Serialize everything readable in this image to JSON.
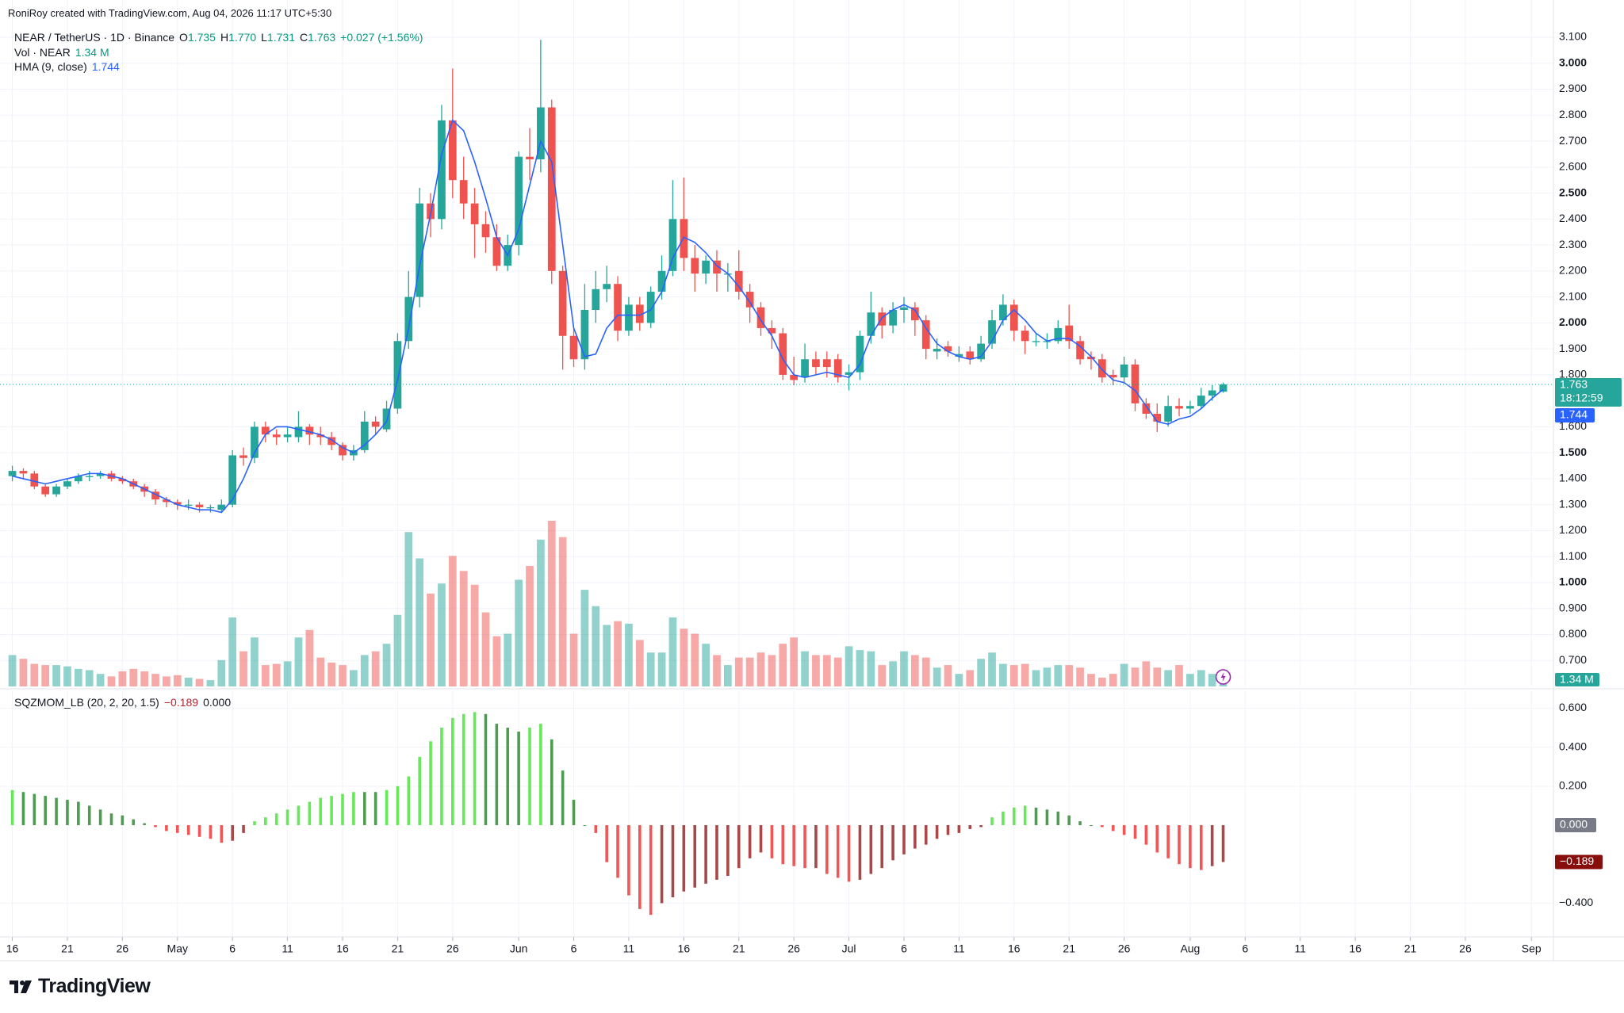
{
  "header": "RoniRoy created with TradingView.com, Aug 04, 2026 11:17 UTC+5:30",
  "brand": "TradingView",
  "chart_data": [
    {
      "type": "candlestick",
      "symbol": "NEAR / TetherUS · 1D · Binance",
      "ohlc_legend": [
        {
          "label": "O",
          "value": "1.735"
        },
        {
          "label": "H",
          "value": "1.770"
        },
        {
          "label": "L",
          "value": "1.731"
        },
        {
          "label": "C",
          "value": "1.763"
        }
      ],
      "change": "+0.027 (+1.56%)",
      "volume_legend": {
        "name": "Vol · NEAR",
        "value": "1.34 M"
      },
      "hma_legend": {
        "name": "HMA (9, close)",
        "value": "1.744"
      },
      "countdown": "18:12:59",
      "colors": {
        "up": "#26a69a",
        "down": "#ef5350",
        "hma": "#2962ff"
      },
      "open": [
        1.41,
        1.43,
        1.42,
        1.37,
        1.34,
        1.37,
        1.39,
        1.41,
        1.41,
        1.42,
        1.4,
        1.39,
        1.37,
        1.35,
        1.32,
        1.31,
        1.3,
        1.3,
        1.29,
        1.28,
        1.3,
        1.49,
        1.48,
        1.6,
        1.57,
        1.56,
        1.56,
        1.6,
        1.57,
        1.56,
        1.53,
        1.49,
        1.51,
        1.62,
        1.59,
        1.67,
        1.93,
        2.1,
        2.46,
        2.4,
        2.78,
        2.55,
        2.46,
        2.38,
        2.33,
        2.22,
        2.3,
        2.64,
        2.63,
        2.83,
        2.2,
        1.95,
        1.86,
        2.05,
        2.13,
        2.15,
        1.97,
        2.07,
        2.0,
        2.12,
        2.2,
        2.4,
        2.25,
        2.19,
        2.24,
        2.19,
        2.2,
        2.12,
        2.06,
        1.98,
        1.96,
        1.8,
        1.79,
        1.86,
        1.86,
        1.86,
        1.8,
        1.81,
        1.95,
        2.04,
        1.99,
        2.05,
        2.06,
        2.01,
        1.89,
        1.91,
        1.87,
        1.89,
        1.86,
        1.92,
        2.01,
        2.07,
        1.97,
        1.93,
        1.93,
        1.93,
        1.99,
        1.93,
        1.87,
        1.86,
        1.8,
        1.79,
        1.84,
        1.69,
        1.65,
        1.62,
        1.68,
        1.67,
        1.68,
        1.72,
        1.735
      ],
      "high": [
        1.45,
        1.44,
        1.43,
        1.38,
        1.38,
        1.4,
        1.42,
        1.43,
        1.43,
        1.43,
        1.41,
        1.4,
        1.38,
        1.36,
        1.33,
        1.32,
        1.32,
        1.31,
        1.3,
        1.32,
        1.51,
        1.52,
        1.62,
        1.62,
        1.59,
        1.6,
        1.66,
        1.61,
        1.6,
        1.58,
        1.54,
        1.53,
        1.66,
        1.64,
        1.7,
        1.96,
        2.2,
        2.52,
        2.5,
        2.84,
        2.98,
        2.64,
        2.52,
        2.43,
        2.38,
        2.34,
        2.66,
        2.75,
        3.09,
        2.86,
        2.22,
        1.98,
        2.15,
        2.2,
        2.22,
        2.18,
        2.1,
        2.1,
        2.14,
        2.26,
        2.55,
        2.56,
        2.3,
        2.26,
        2.28,
        2.23,
        2.28,
        2.15,
        2.08,
        2.01,
        1.98,
        1.87,
        1.92,
        1.89,
        1.89,
        1.88,
        1.84,
        1.97,
        2.12,
        2.06,
        2.08,
        2.1,
        2.08,
        2.03,
        1.94,
        1.93,
        1.91,
        1.91,
        1.95,
        2.05,
        2.11,
        2.09,
        1.99,
        1.96,
        1.96,
        2.01,
        2.07,
        1.95,
        1.89,
        1.88,
        1.82,
        1.87,
        1.86,
        1.71,
        1.69,
        1.72,
        1.71,
        1.7,
        1.75,
        1.76,
        1.77
      ],
      "low": [
        1.39,
        1.4,
        1.36,
        1.33,
        1.33,
        1.36,
        1.38,
        1.39,
        1.4,
        1.39,
        1.38,
        1.36,
        1.33,
        1.3,
        1.29,
        1.28,
        1.28,
        1.27,
        1.27,
        1.27,
        1.29,
        1.45,
        1.46,
        1.54,
        1.53,
        1.54,
        1.54,
        1.53,
        1.53,
        1.51,
        1.47,
        1.47,
        1.5,
        1.57,
        1.58,
        1.65,
        1.9,
        2.06,
        2.33,
        2.36,
        2.48,
        2.4,
        2.25,
        2.27,
        2.2,
        2.2,
        2.26,
        2.55,
        2.58,
        2.15,
        1.82,
        1.83,
        1.82,
        2.0,
        2.08,
        1.93,
        1.95,
        1.97,
        1.98,
        2.09,
        2.18,
        2.2,
        2.12,
        2.15,
        2.12,
        2.12,
        2.09,
        2.0,
        1.95,
        1.9,
        1.78,
        1.76,
        1.77,
        1.8,
        1.79,
        1.77,
        1.74,
        1.78,
        1.92,
        1.94,
        1.96,
        2.0,
        1.95,
        1.86,
        1.86,
        1.87,
        1.85,
        1.84,
        1.85,
        1.9,
        1.99,
        1.93,
        1.88,
        1.91,
        1.9,
        1.92,
        1.9,
        1.84,
        1.82,
        1.77,
        1.76,
        1.77,
        1.66,
        1.63,
        1.58,
        1.6,
        1.64,
        1.65,
        1.67,
        1.7,
        1.731
      ],
      "close": [
        1.43,
        1.42,
        1.37,
        1.34,
        1.37,
        1.39,
        1.41,
        1.41,
        1.42,
        1.4,
        1.39,
        1.37,
        1.35,
        1.32,
        1.31,
        1.3,
        1.3,
        1.29,
        1.29,
        1.3,
        1.49,
        1.48,
        1.6,
        1.57,
        1.56,
        1.57,
        1.6,
        1.57,
        1.56,
        1.53,
        1.49,
        1.51,
        1.62,
        1.6,
        1.67,
        1.93,
        2.1,
        2.46,
        2.4,
        2.78,
        2.55,
        2.46,
        2.38,
        2.33,
        2.22,
        2.3,
        2.64,
        2.63,
        2.83,
        2.2,
        1.95,
        1.86,
        2.05,
        2.13,
        2.15,
        1.97,
        2.07,
        2.0,
        2.12,
        2.2,
        2.4,
        2.25,
        2.19,
        2.24,
        2.19,
        2.19,
        2.12,
        2.06,
        1.98,
        1.96,
        1.8,
        1.78,
        1.86,
        1.83,
        1.83,
        1.79,
        1.81,
        1.95,
        2.04,
        1.99,
        2.05,
        2.06,
        2.01,
        1.9,
        1.9,
        1.89,
        1.88,
        1.86,
        1.92,
        2.01,
        2.07,
        1.97,
        1.93,
        1.93,
        1.93,
        1.98,
        1.93,
        1.86,
        1.86,
        1.79,
        1.79,
        1.84,
        1.69,
        1.65,
        1.62,
        1.68,
        1.67,
        1.68,
        1.72,
        1.74,
        1.763
      ],
      "volume": [
        2.5,
        2.2,
        1.8,
        1.7,
        1.7,
        1.6,
        1.4,
        1.3,
        1.0,
        0.8,
        1.2,
        1.4,
        1.2,
        1.0,
        0.8,
        0.9,
        0.7,
        0.6,
        0.5,
        2.1,
        5.5,
        2.8,
        3.9,
        1.7,
        1.8,
        2.0,
        3.9,
        4.5,
        2.3,
        1.9,
        1.7,
        1.3,
        2.5,
        2.8,
        3.4,
        5.7,
        12.3,
        10.2,
        7.4,
        8.2,
        10.4,
        9.2,
        8.1,
        5.9,
        4.0,
        4.2,
        8.5,
        9.6,
        11.7,
        13.2,
        11.9,
        4.2,
        7.7,
        6.4,
        4.9,
        5.2,
        5.0,
        3.7,
        2.7,
        2.7,
        5.5,
        4.6,
        4.2,
        3.4,
        2.5,
        1.7,
        2.3,
        2.3,
        2.7,
        2.5,
        3.4,
        3.9,
        2.8,
        2.5,
        2.5,
        2.3,
        3.2,
        2.9,
        2.8,
        1.7,
        2.0,
        2.8,
        2.5,
        2.3,
        1.5,
        1.7,
        1.0,
        1.3,
        2.2,
        2.7,
        1.8,
        1.7,
        1.8,
        1.3,
        1.5,
        1.7,
        1.7,
        1.5,
        1.0,
        0.7,
        1.0,
        1.8,
        1.5,
        2.0,
        1.5,
        1.3,
        1.7,
        1.0,
        1.3,
        1.0,
        1.34
      ],
      "hma": [
        1.41,
        1.4,
        1.39,
        1.38,
        1.39,
        1.4,
        1.41,
        1.42,
        1.42,
        1.41,
        1.4,
        1.38,
        1.36,
        1.34,
        1.32,
        1.3,
        1.29,
        1.28,
        1.28,
        1.27,
        1.32,
        1.4,
        1.5,
        1.57,
        1.6,
        1.6,
        1.59,
        1.58,
        1.57,
        1.55,
        1.52,
        1.5,
        1.53,
        1.57,
        1.62,
        1.78,
        1.98,
        2.22,
        2.42,
        2.65,
        2.78,
        2.74,
        2.62,
        2.48,
        2.33,
        2.26,
        2.36,
        2.53,
        2.7,
        2.62,
        2.3,
        1.98,
        1.87,
        1.88,
        1.98,
        2.03,
        2.03,
        2.03,
        2.05,
        2.12,
        2.25,
        2.33,
        2.31,
        2.27,
        2.22,
        2.19,
        2.14,
        2.08,
        2.01,
        1.95,
        1.86,
        1.8,
        1.79,
        1.8,
        1.81,
        1.8,
        1.79,
        1.84,
        1.95,
        2.02,
        2.05,
        2.07,
        2.05,
        1.98,
        1.92,
        1.89,
        1.87,
        1.86,
        1.87,
        1.93,
        2.01,
        2.05,
        2.01,
        1.96,
        1.93,
        1.94,
        1.94,
        1.91,
        1.87,
        1.82,
        1.78,
        1.77,
        1.74,
        1.68,
        1.62,
        1.61,
        1.63,
        1.64,
        1.67,
        1.71,
        1.744
      ],
      "xlim": [
        -0.4,
        140
      ],
      "ylim": [
        0.6,
        3.155
      ],
      "yticks": [
        {
          "value": 3.1,
          "label": "3.100"
        },
        {
          "value": 3.0,
          "label": "3.000"
        },
        {
          "value": 2.9,
          "label": "2.900"
        },
        {
          "value": 2.8,
          "label": "2.800"
        },
        {
          "value": 2.7,
          "label": "2.700"
        },
        {
          "value": 2.6,
          "label": "2.600"
        },
        {
          "value": 2.5,
          "label": "2.500"
        },
        {
          "value": 2.4,
          "label": "2.400"
        },
        {
          "value": 2.3,
          "label": "2.300"
        },
        {
          "value": 2.2,
          "label": "2.200"
        },
        {
          "value": 2.1,
          "label": "2.100"
        },
        {
          "value": 2.0,
          "label": "2.000"
        },
        {
          "value": 1.9,
          "label": "1.900"
        },
        {
          "value": 1.8,
          "label": "1.800"
        },
        {
          "value": 1.6,
          "label": "1.600"
        },
        {
          "value": 1.5,
          "label": "1.500"
        },
        {
          "value": 1.4,
          "label": "1.400"
        },
        {
          "value": 1.3,
          "label": "1.300"
        },
        {
          "value": 1.2,
          "label": "1.200"
        },
        {
          "value": 1.1,
          "label": "1.100"
        },
        {
          "value": 1.0,
          "label": "1.000"
        },
        {
          "value": 0.9,
          "label": "0.900"
        },
        {
          "value": 0.8,
          "label": "0.800"
        },
        {
          "value": 0.7,
          "label": "0.700"
        }
      ],
      "grid": true
    },
    {
      "type": "bar",
      "title": "SQZMOM_LB (20, 2, 20, 1.5)",
      "legend_values": [
        "−0.189",
        "0.000"
      ],
      "colors": {
        "rising_up": "#66e85a",
        "falling_up": "#4e9c52",
        "falling_down": "#f25555",
        "rising_down": "#a84848",
        "zero_box": "#787b86",
        "value_box": "#880e0e"
      },
      "values": [
        0.18,
        0.17,
        0.16,
        0.15,
        0.14,
        0.13,
        0.12,
        0.1,
        0.08,
        0.06,
        0.05,
        0.03,
        0.01,
        -0.01,
        -0.03,
        -0.04,
        -0.05,
        -0.06,
        -0.07,
        -0.09,
        -0.08,
        -0.04,
        0.02,
        0.04,
        0.06,
        0.08,
        0.1,
        0.12,
        0.14,
        0.15,
        0.16,
        0.17,
        0.17,
        0.17,
        0.18,
        0.2,
        0.25,
        0.35,
        0.43,
        0.5,
        0.55,
        0.57,
        0.58,
        0.57,
        0.52,
        0.5,
        0.48,
        0.5,
        0.52,
        0.44,
        0.28,
        0.13,
        0.0,
        -0.04,
        -0.19,
        -0.27,
        -0.36,
        -0.43,
        -0.46,
        -0.4,
        -0.37,
        -0.34,
        -0.32,
        -0.3,
        -0.28,
        -0.26,
        -0.22,
        -0.17,
        -0.14,
        -0.17,
        -0.2,
        -0.21,
        -0.22,
        -0.22,
        -0.25,
        -0.27,
        -0.29,
        -0.28,
        -0.25,
        -0.22,
        -0.18,
        -0.15,
        -0.12,
        -0.1,
        -0.07,
        -0.05,
        -0.04,
        -0.02,
        -0.01,
        0.04,
        0.07,
        0.09,
        0.1,
        0.09,
        0.08,
        0.07,
        0.05,
        0.02,
        0.0,
        -0.01,
        -0.03,
        -0.05,
        -0.07,
        -0.1,
        -0.14,
        -0.17,
        -0.2,
        -0.22,
        -0.23,
        -0.21,
        -0.189
      ],
      "xlim": [
        -0.4,
        140
      ],
      "ylim": [
        -0.573,
        0.687
      ],
      "yticks": [
        {
          "value": 0.6,
          "label": "0.600"
        },
        {
          "value": 0.4,
          "label": "0.400"
        },
        {
          "value": 0.2,
          "label": "0.200"
        },
        {
          "value": -0.4,
          "label": "−0.400"
        }
      ],
      "xticks": [
        {
          "value": 0,
          "label": "16"
        },
        {
          "value": 5,
          "label": "21"
        },
        {
          "value": 10,
          "label": "26"
        },
        {
          "value": 15,
          "label": "May"
        },
        {
          "value": 20,
          "label": "6"
        },
        {
          "value": 25,
          "label": "11"
        },
        {
          "value": 30,
          "label": "16"
        },
        {
          "value": 35,
          "label": "21"
        },
        {
          "value": 40,
          "label": "26"
        },
        {
          "value": 46,
          "label": "Jun"
        },
        {
          "value": 51,
          "label": "6"
        },
        {
          "value": 56,
          "label": "11"
        },
        {
          "value": 61,
          "label": "16"
        },
        {
          "value": 66,
          "label": "21"
        },
        {
          "value": 71,
          "label": "26"
        },
        {
          "value": 76,
          "label": "Jul"
        },
        {
          "value": 81,
          "label": "6"
        },
        {
          "value": 86,
          "label": "11"
        },
        {
          "value": 91,
          "label": "16"
        },
        {
          "value": 96,
          "label": "21"
        },
        {
          "value": 101,
          "label": "26"
        },
        {
          "value": 107,
          "label": "Aug"
        },
        {
          "value": 112,
          "label": "6"
        },
        {
          "value": 117,
          "label": "11"
        },
        {
          "value": 122,
          "label": "16"
        },
        {
          "value": 127,
          "label": "21"
        },
        {
          "value": 132,
          "label": "26"
        },
        {
          "value": 138,
          "label": "Sep"
        }
      ],
      "grid": true
    }
  ]
}
